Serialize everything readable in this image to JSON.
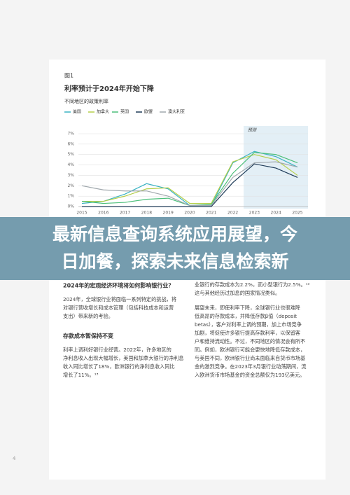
{
  "figure_label": "图1",
  "chart_data": {
    "type": "line",
    "title": "利率预计于2024年开始下降",
    "subtitle": "不同地区的政策利率",
    "annotation": "预测",
    "categories": [
      "2015",
      "2016",
      "2017",
      "2018",
      "2019",
      "2020",
      "2021",
      "2022",
      "2023",
      "2024",
      "2025"
    ],
    "series": [
      {
        "name": "美国",
        "color": "#3bb3c3",
        "values": [
          0.3,
          0.5,
          1.2,
          2.2,
          1.7,
          0.1,
          0.1,
          4.2,
          5.3,
          4.8,
          3.8
        ]
      },
      {
        "name": "加拿大",
        "color": "#b5cf4a",
        "values": [
          0.5,
          0.5,
          1.0,
          1.7,
          1.8,
          0.3,
          0.3,
          4.3,
          5.0,
          4.5,
          3.0
        ]
      },
      {
        "name": "英国",
        "color": "#4cbf7a",
        "values": [
          0.5,
          0.3,
          0.4,
          0.7,
          0.8,
          0.1,
          0.2,
          3.2,
          5.2,
          5.0,
          4.2
        ]
      },
      {
        "name": "欧盟",
        "color": "#1d3a57",
        "values": [
          0,
          0,
          0,
          0,
          0,
          0,
          0,
          2.3,
          4.1,
          3.7,
          2.8
        ]
      },
      {
        "name": "澳大利亚",
        "color": "#a0a8ad",
        "values": [
          2.0,
          1.6,
          1.5,
          1.5,
          1.0,
          0.1,
          0.1,
          2.8,
          4.2,
          4.3,
          3.8
        ]
      }
    ],
    "ylim": [
      0,
      7
    ],
    "yticks": [
      {
        "value": 0,
        "label": "0%"
      },
      {
        "value": 1,
        "label": "1%"
      },
      {
        "value": 2,
        "label": "2%"
      },
      {
        "value": 3,
        "label": "3%"
      },
      {
        "value": 4,
        "label": "4%"
      },
      {
        "value": 5,
        "label": "5%"
      },
      {
        "value": 6,
        "label": "6%"
      },
      {
        "value": 7,
        "label": "7%"
      }
    ],
    "grid": true
  },
  "banner": {
    "lines": [
      "最新信息查询系统应用展望，今",
      "日加餐，探索未来信息检索新"
    ]
  },
  "left_column": {
    "heading1": "2024年的宏观经济环境将如何影响银行业？",
    "paragraph1": [
      "2024年，全球银行业将面临一系列特定的挑战，将",
      "对银行营收增长和成本管理（包括科技成本和运营",
      "支出）带来新的考验。"
    ],
    "heading2": "存款成本暂保持不变",
    "paragraph2": [
      "利率上调利好银行业经营。2022年，许多地区的",
      "净利息收入出现大幅增长，美国和加拿大银行的净利息",
      "收入同比增长了18%，欧洲银行的净利息收入同比",
      "增长了11%。¹³"
    ]
  },
  "right_column": {
    "paragraph1": [
      "业银行的存款成本为2.2%，而小型银行为2.5%。¹²",
      "这与其他经历过加息的国家情况类似。"
    ],
    "paragraph2": [
      "展望未来，即使利率下降，全球银行业也很难降",
      "低高昂的存款成本，并降低存款β值（deposit",
      "betas），客户对利率上调的预期，加上市场竞争",
      "加剧，将促使许多银行提高存款利率，以保留客",
      "户和维持流动性。不过，不同地区的情况会有所不",
      "同。例如，欧洲银行可能会更快地降低存款成本，",
      "与美国不同，欧洲银行业尚未面临来自货币市场基",
      "金的激烈竞争。在2023年3月银行业动荡期间，流",
      "入欧洲货币市场基金的资金总额仅为193亿美元。"
    ]
  },
  "page_number": "4"
}
